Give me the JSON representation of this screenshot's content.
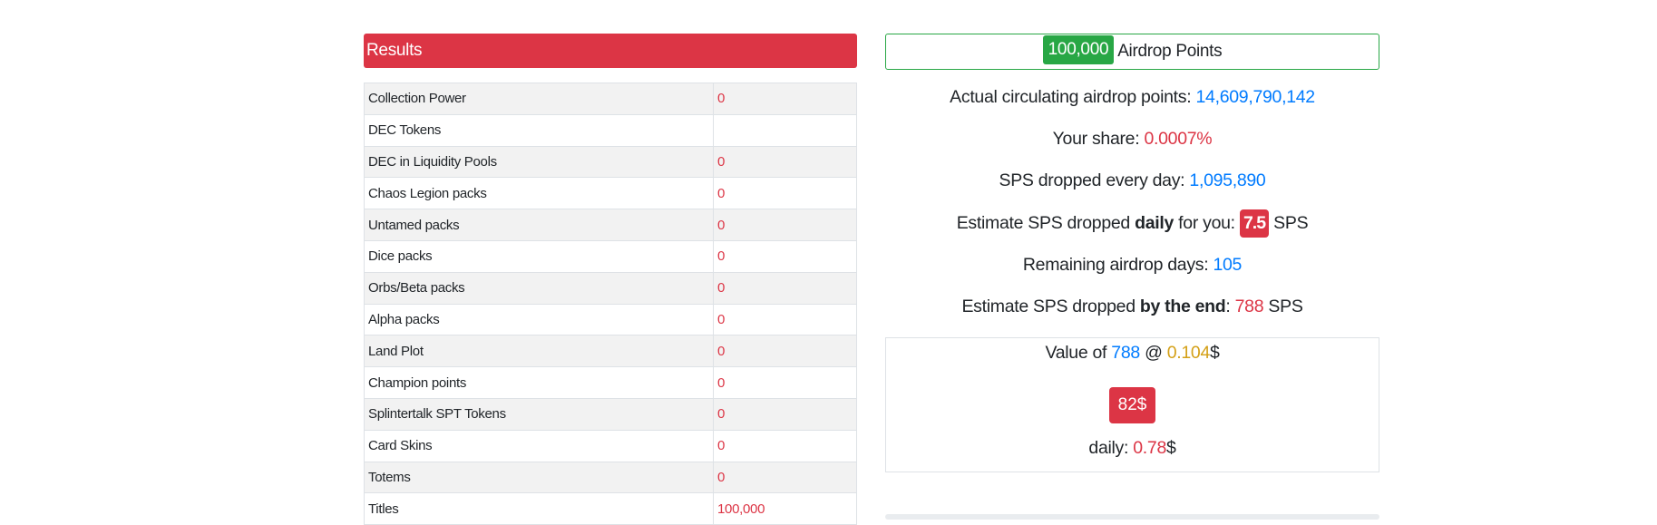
{
  "results": {
    "header": "Results",
    "rows": [
      {
        "label": "Collection Power",
        "value": "0"
      },
      {
        "label": "DEC Tokens",
        "value": ""
      },
      {
        "label": "DEC in Liquidity Pools",
        "value": "0"
      },
      {
        "label": "Chaos Legion packs",
        "value": "0"
      },
      {
        "label": "Untamed packs",
        "value": "0"
      },
      {
        "label": "Dice packs",
        "value": "0"
      },
      {
        "label": "Orbs/Beta packs",
        "value": "0"
      },
      {
        "label": "Alpha packs",
        "value": "0"
      },
      {
        "label": "Land Plot",
        "value": "0"
      },
      {
        "label": "Champion points",
        "value": "0"
      },
      {
        "label": "Splintertalk SPT Tokens",
        "value": "0"
      },
      {
        "label": "Card Skins",
        "value": "0"
      },
      {
        "label": "Totems",
        "value": "0"
      },
      {
        "label": "Titles",
        "value": "100,000"
      }
    ]
  },
  "airdrop": {
    "points_value": "100,000",
    "points_label": "Airdrop Points",
    "circulating_label": "Actual circulating airdrop points:",
    "circulating_value": "14,609,790,142",
    "share_label": "Your share:",
    "share_value": "0.0007%",
    "dropped_daily_label": "SPS dropped every day:",
    "dropped_daily_value": "1,095,890",
    "estimate_daily_prefix": "Estimate SPS dropped",
    "estimate_daily_bold": "daily",
    "estimate_daily_suffix": "for you:",
    "estimate_daily_value": "7.5",
    "estimate_daily_unit": "SPS",
    "remaining_label": "Remaining airdrop days:",
    "remaining_value": "105",
    "estimate_end_prefix": "Estimate SPS dropped",
    "estimate_end_bold": "by the end",
    "estimate_end_colon": ":",
    "estimate_end_value": "788",
    "estimate_end_unit": "SPS"
  },
  "value_box": {
    "prefix": "Value of",
    "amount": "788",
    "at": "@",
    "price": "0.104",
    "currency": "$",
    "total": "82$",
    "daily_label": "daily:",
    "daily_value": "0.78",
    "daily_currency": "$"
  },
  "colors": {
    "danger": "#dc3545",
    "success": "#28a745",
    "primary": "#007bff",
    "warning": "#d4a017"
  }
}
